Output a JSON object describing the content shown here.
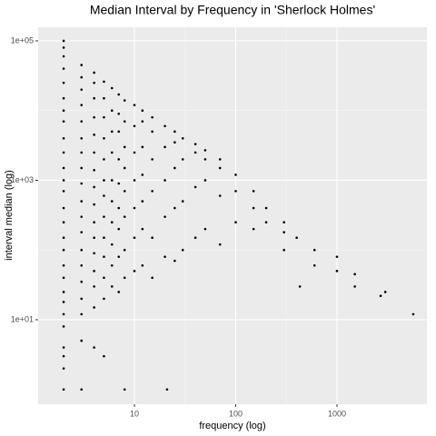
{
  "chart_data": {
    "type": "scatter",
    "title": "Median Interval by Frequency in 'Sherlock Holmes'",
    "x_label": "frequency (log)",
    "y_label": "interval median (log)",
    "x_log": true,
    "y_log": true,
    "grid": true,
    "color": "#000000",
    "xlim": [
      1.12,
      7730
    ],
    "ylim": [
      0.614,
      156700
    ],
    "xticks": [
      10,
      100,
      1000
    ],
    "yticks": [
      {
        "value": 10,
        "label": "1e+01"
      },
      {
        "value": 1000,
        "label": "1e+03"
      },
      {
        "value": 100000,
        "label": "1e+05"
      }
    ],
    "x": [
      2,
      2,
      2,
      2,
      2,
      2,
      2,
      2,
      2,
      2,
      2,
      2,
      2,
      2,
      2,
      2,
      2,
      2,
      2,
      2,
      2,
      2,
      2,
      2,
      2,
      2,
      2,
      3,
      3,
      3,
      3,
      3,
      3,
      3,
      3,
      3,
      3,
      3,
      3,
      3,
      3,
      3,
      3,
      3,
      3,
      3,
      4,
      4,
      4,
      4,
      4,
      4,
      4,
      4,
      4,
      4,
      4,
      4,
      4,
      4,
      4,
      4,
      5,
      5,
      5,
      5,
      5,
      5,
      5,
      5,
      5,
      5,
      5,
      5,
      5,
      6,
      6,
      6,
      6,
      6,
      6,
      6,
      6,
      6,
      6,
      7,
      7,
      7,
      7,
      7,
      7,
      7,
      7,
      7,
      8,
      8,
      8,
      8,
      8,
      8,
      8,
      8,
      8,
      10,
      10,
      10,
      10,
      10,
      10,
      10,
      12,
      12,
      12,
      12,
      12,
      12,
      12,
      15,
      15,
      15,
      15,
      15,
      15,
      21,
      20,
      20,
      20,
      20,
      20,
      25,
      25,
      25,
      25,
      25,
      30,
      30,
      30,
      30,
      40,
      40,
      40,
      40,
      50,
      50,
      50,
      50,
      70,
      70,
      70,
      70,
      100,
      100,
      100,
      150,
      150,
      150,
      200,
      200,
      300,
      300,
      300,
      430,
      400,
      600,
      600,
      1000,
      1000,
      1500,
      1500,
      2700,
      3000,
      5665
    ],
    "values": [
      1,
      2,
      3,
      4,
      8,
      12,
      18,
      25,
      40,
      60,
      100,
      150,
      250,
      400,
      700,
      1000,
      1500,
      2500,
      4000,
      7000,
      10000,
      15000,
      25000,
      40000,
      60000,
      80000,
      100000,
      1,
      5,
      12,
      20,
      35,
      60,
      100,
      180,
      300,
      500,
      900,
      1500,
      2500,
      4000,
      7000,
      12000,
      20000,
      30000,
      45000,
      4,
      15,
      30,
      50,
      90,
      150,
      250,
      450,
      800,
      1400,
      2500,
      4500,
      8000,
      15000,
      25000,
      35000,
      3,
      20,
      40,
      80,
      150,
      300,
      600,
      1000,
      2000,
      4000,
      8000,
      15000,
      26000,
      30,
      60,
      120,
      250,
      500,
      1000,
      2500,
      5000,
      10000,
      21000,
      25,
      80,
      200,
      400,
      900,
      2000,
      5000,
      9000,
      17000,
      1,
      40,
      100,
      300,
      700,
      1500,
      3000,
      7000,
      14000,
      50,
      150,
      400,
      1000,
      2500,
      6000,
      12000,
      60,
      200,
      500,
      1200,
      3000,
      7000,
      10000,
      40,
      150,
      700,
      2000,
      5000,
      8000,
      1,
      80,
      300,
      1000,
      3000,
      6000,
      70,
      400,
      1500,
      3500,
      5000,
      100,
      500,
      2000,
      4000,
      150,
      800,
      2500,
      3300,
      200,
      1000,
      2000,
      2700,
      120,
      600,
      1500,
      2000,
      250,
      700,
      1200,
      200,
      400,
      700,
      250,
      400,
      100,
      180,
      250,
      30,
      150,
      60,
      100,
      50,
      80,
      30,
      45,
      22,
      25,
      12
    ]
  }
}
